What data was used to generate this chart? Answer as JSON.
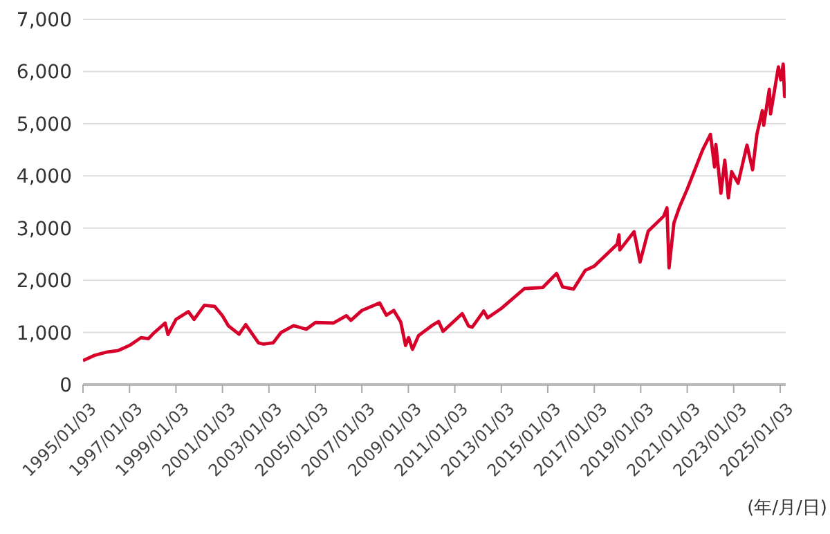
{
  "chart_data": {
    "type": "line",
    "x": [
      "1995-01-03",
      "1995-07-03",
      "1996-01-03",
      "1996-07-03",
      "1997-01-03",
      "1997-07-03",
      "1997-10-27",
      "1998-01-05",
      "1998-07-17",
      "1998-08-31",
      "1999-01-04",
      "1999-07-16",
      "1999-10-15",
      "2000-03-24",
      "2000-09-01",
      "2001-01-03",
      "2001-04-04",
      "2001-09-21",
      "2002-01-04",
      "2002-07-23",
      "2002-10-09",
      "2003-03-11",
      "2003-07-14",
      "2004-01-26",
      "2004-08-12",
      "2005-01-03",
      "2005-10-13",
      "2006-05-05",
      "2006-07-14",
      "2007-01-03",
      "2007-10-09",
      "2008-01-22",
      "2008-05-19",
      "2008-09-05",
      "2008-11-20",
      "2009-01-06",
      "2009-03-09",
      "2009-06-12",
      "2010-01-19",
      "2010-04-23",
      "2010-07-02",
      "2011-04-29",
      "2011-08-08",
      "2011-10-03",
      "2012-04-02",
      "2012-06-01",
      "2013-01-03",
      "2013-12-31",
      "2014-10-15",
      "2015-05-21",
      "2015-08-25",
      "2016-02-11",
      "2016-08-15",
      "2017-01-03",
      "2017-12-29",
      "2018-01-26",
      "2018-02-08",
      "2018-09-20",
      "2018-12-24",
      "2019-04-30",
      "2019-12-31",
      "2020-02-19",
      "2020-03-23",
      "2020-06-08",
      "2020-09-02",
      "2021-01-04",
      "2021-06-30",
      "2021-09-02",
      "2022-01-03",
      "2022-03-08",
      "2022-03-29",
      "2022-06-16",
      "2022-08-16",
      "2022-10-12",
      "2022-12-01",
      "2023-03-13",
      "2023-07-31",
      "2023-10-27",
      "2024-01-03",
      "2024-03-28",
      "2024-04-19",
      "2024-07-16",
      "2024-08-05",
      "2024-12-06",
      "2025-01-13",
      "2025-02-19",
      "2025-03-13",
      "2025-03-28"
    ],
    "series": [
      {
        "color": "#d7002a",
        "values": [
          459,
          560,
          620,
          650,
          750,
          900,
          880,
          970,
          1180,
          960,
          1250,
          1400,
          1250,
          1520,
          1500,
          1320,
          1130,
          965,
          1150,
          800,
          776,
          800,
          1000,
          1130,
          1060,
          1190,
          1180,
          1320,
          1230,
          1420,
          1565,
          1330,
          1420,
          1200,
          750,
          900,
          677,
          940,
          1140,
          1210,
          1020,
          1360,
          1120,
          1100,
          1410,
          1280,
          1460,
          1840,
          1860,
          2130,
          1870,
          1830,
          2190,
          2270,
          2690,
          2870,
          2580,
          2930,
          2350,
          2940,
          3230,
          3386,
          2237,
          3100,
          3400,
          3750,
          4300,
          4500,
          4796,
          4170,
          4600,
          3666,
          4300,
          3577,
          4080,
          3860,
          4590,
          4117,
          4800,
          5250,
          4970,
          5660,
          5190,
          6090,
          5840,
          6144,
          5520,
          5580
        ]
      }
    ],
    "xlim": [
      "1995-01-03",
      "2025-03-31"
    ],
    "xticks": [
      {
        "value": "1995-01-03",
        "label": "1995/01/03"
      },
      {
        "value": "1997-01-03",
        "label": "1997/01/03"
      },
      {
        "value": "1999-01-03",
        "label": "1999/01/03"
      },
      {
        "value": "2001-01-03",
        "label": "2001/01/03"
      },
      {
        "value": "2003-01-03",
        "label": "2003/01/03"
      },
      {
        "value": "2005-01-03",
        "label": "2005/01/03"
      },
      {
        "value": "2007-01-03",
        "label": "2007/01/03"
      },
      {
        "value": "2009-01-03",
        "label": "2009/01/03"
      },
      {
        "value": "2011-01-03",
        "label": "2011/01/03"
      },
      {
        "value": "2013-01-03",
        "label": "2013/01/03"
      },
      {
        "value": "2015-01-03",
        "label": "2015/01/03"
      },
      {
        "value": "2017-01-03",
        "label": "2017/01/03"
      },
      {
        "value": "2019-01-03",
        "label": "2019/01/03"
      },
      {
        "value": "2021-01-03",
        "label": "2021/01/03"
      },
      {
        "value": "2023-01-03",
        "label": "2023/01/03"
      },
      {
        "value": "2025-01-03",
        "label": "2025/01/03"
      }
    ],
    "ylim": [
      0,
      7000
    ],
    "yticks": [
      0,
      {
        "value": 1000,
        "label": "1,000"
      },
      {
        "value": 2000,
        "label": "2,000"
      },
      {
        "value": 3000,
        "label": "3,000"
      },
      {
        "value": 4000,
        "label": "4,000"
      },
      {
        "value": 5000,
        "label": "5,000"
      },
      {
        "value": 6000,
        "label": "6,000"
      },
      {
        "value": 7000,
        "label": "7,000"
      }
    ],
    "grid": "y",
    "marker": "none",
    "line_style": "solid",
    "annotations": [
      "(年/月/日)"
    ]
  }
}
